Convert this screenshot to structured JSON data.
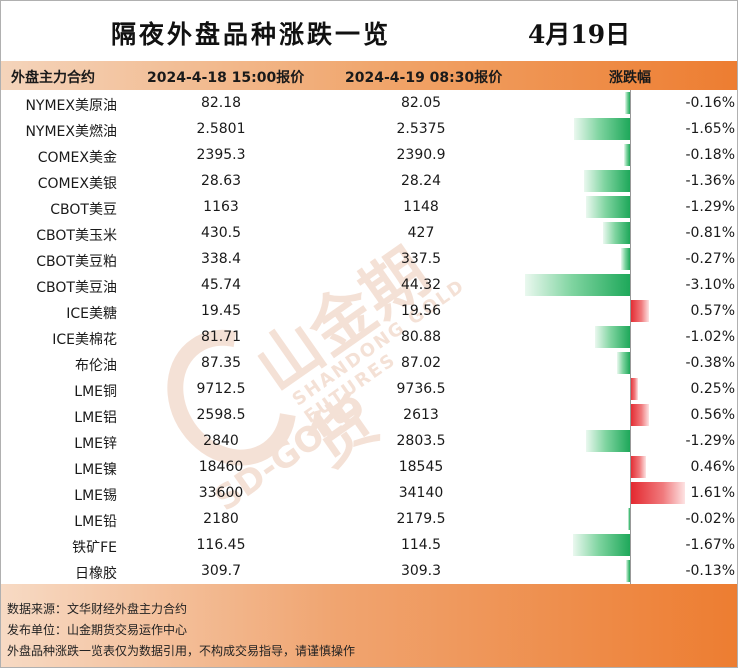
{
  "title": "隔夜外盘品种涨跌一览",
  "date": "4月19日",
  "headers": {
    "name": "外盘主力合约",
    "price1": "2024-4-18 15:00报价",
    "price2": "2024-4-19 08:30报价",
    "change": "涨跌幅"
  },
  "watermark": {
    "name": "山金期货",
    "sub": "SHANDONG GOLD FUTURES",
    "brand": "SD-GOLD"
  },
  "colors": {
    "negative": "#1ea85a",
    "positive": "#e3262d",
    "accent": "#ed7d31"
  },
  "chart_data": {
    "type": "table",
    "columns": [
      "外盘主力合约",
      "2024-4-18 15:00报价",
      "2024-4-19 08:30报价",
      "涨跌幅"
    ],
    "bar_scale_max_abs_pct": 3.1,
    "rows": [
      {
        "name": "NYMEX美原油",
        "p1": "82.18",
        "p2": "82.05",
        "pct_label": "-0.16%",
        "pct": -0.16
      },
      {
        "name": "NYMEX美燃油",
        "p1": "2.5801",
        "p2": "2.5375",
        "pct_label": "-1.65%",
        "pct": -1.65
      },
      {
        "name": "COMEX美金",
        "p1": "2395.3",
        "p2": "2390.9",
        "pct_label": "-0.18%",
        "pct": -0.18
      },
      {
        "name": "COMEX美银",
        "p1": "28.63",
        "p2": "28.24",
        "pct_label": "-1.36%",
        "pct": -1.36
      },
      {
        "name": "CBOT美豆",
        "p1": "1163",
        "p2": "1148",
        "pct_label": "-1.29%",
        "pct": -1.29
      },
      {
        "name": "CBOT美玉米",
        "p1": "430.5",
        "p2": "427",
        "pct_label": "-0.81%",
        "pct": -0.81
      },
      {
        "name": "CBOT美豆粕",
        "p1": "338.4",
        "p2": "337.5",
        "pct_label": "-0.27%",
        "pct": -0.27
      },
      {
        "name": "CBOT美豆油",
        "p1": "45.74",
        "p2": "44.32",
        "pct_label": "-3.10%",
        "pct": -3.1
      },
      {
        "name": "ICE美糖",
        "p1": "19.45",
        "p2": "19.56",
        "pct_label": "0.57%",
        "pct": 0.57
      },
      {
        "name": "ICE美棉花",
        "p1": "81.71",
        "p2": "80.88",
        "pct_label": "-1.02%",
        "pct": -1.02
      },
      {
        "name": "布伦油",
        "p1": "87.35",
        "p2": "87.02",
        "pct_label": "-0.38%",
        "pct": -0.38
      },
      {
        "name": "LME铜",
        "p1": "9712.5",
        "p2": "9736.5",
        "pct_label": "0.25%",
        "pct": 0.25
      },
      {
        "name": "LME铝",
        "p1": "2598.5",
        "p2": "2613",
        "pct_label": "0.56%",
        "pct": 0.56
      },
      {
        "name": "LME锌",
        "p1": "2840",
        "p2": "2803.5",
        "pct_label": "-1.29%",
        "pct": -1.29
      },
      {
        "name": "LME镍",
        "p1": "18460",
        "p2": "18545",
        "pct_label": "0.46%",
        "pct": 0.46
      },
      {
        "name": "LME锡",
        "p1": "33600",
        "p2": "34140",
        "pct_label": "1.61%",
        "pct": 1.61
      },
      {
        "name": "LME铅",
        "p1": "2180",
        "p2": "2179.5",
        "pct_label": "-0.02%",
        "pct": -0.02
      },
      {
        "name": "铁矿FE",
        "p1": "116.45",
        "p2": "114.5",
        "pct_label": "-1.67%",
        "pct": -1.67
      },
      {
        "name": "日橡胶",
        "p1": "309.7",
        "p2": "309.3",
        "pct_label": "-0.13%",
        "pct": -0.13
      }
    ]
  },
  "footer": {
    "source": "数据来源：文华财经外盘主力合约",
    "publisher": "发布单位：山金期货交易运作中心",
    "disclaimer": "外盘品种涨跌一览表仅为数据引用，不构成交易指导，请谨慎操作"
  }
}
